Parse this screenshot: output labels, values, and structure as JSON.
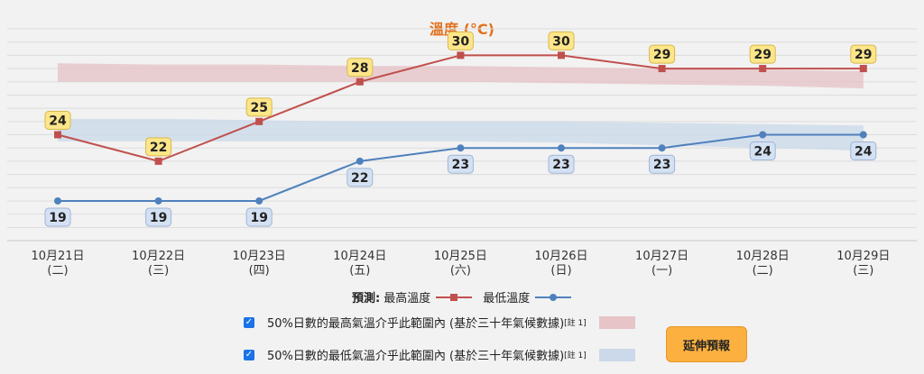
{
  "chart_data": {
    "type": "line",
    "title": "溫度 (°C)",
    "categories": [
      {
        "date": "10月21日",
        "weekday": "(二)"
      },
      {
        "date": "10月22日",
        "weekday": "(三)"
      },
      {
        "date": "10月23日",
        "weekday": "(四)"
      },
      {
        "date": "10月24日",
        "weekday": "(五)"
      },
      {
        "date": "10月25日",
        "weekday": "(六)"
      },
      {
        "date": "10月26日",
        "weekday": "(日)"
      },
      {
        "date": "10月27日",
        "weekday": "(一)"
      },
      {
        "date": "10月28日",
        "weekday": "(二)"
      },
      {
        "date": "10月29日",
        "weekday": "(三)"
      }
    ],
    "series": [
      {
        "name": "最高溫度",
        "values": [
          24,
          22,
          25,
          28,
          30,
          30,
          29,
          29,
          29
        ],
        "color": "#c0504d"
      },
      {
        "name": "最低溫度",
        "values": [
          19,
          19,
          19,
          22,
          23,
          23,
          23,
          24,
          24
        ],
        "color": "#4f81bd"
      }
    ],
    "bands": [
      {
        "name": "50%日數的最高氣溫介乎此範圍內",
        "low": [
          28.0,
          28.0,
          28.0,
          28.0,
          28.0,
          27.9,
          27.8,
          27.7,
          27.5
        ],
        "high": [
          29.4,
          29.3,
          29.3,
          29.2,
          29.2,
          29.1,
          29.0,
          28.9,
          28.8
        ],
        "color": "#e6c4c8"
      },
      {
        "name": "50%日數的最低氣溫介乎此範圍內",
        "low": [
          23.5,
          23.5,
          23.5,
          23.5,
          23.5,
          23.4,
          23.2,
          23.0,
          22.8
        ],
        "high": [
          25.2,
          25.2,
          25.1,
          25.0,
          25.0,
          25.0,
          24.9,
          24.8,
          24.7
        ],
        "color": "#ccd9ea"
      }
    ],
    "ylim": [
      16,
      32
    ],
    "grid": true,
    "legend_position": "bottom"
  },
  "legend": {
    "prefix": "預測:",
    "max_label": "最高溫度",
    "min_label": "最低溫度",
    "band_max_text": "50%日數的最高氣溫介乎此範圍內 (基於三十年氣候數據)",
    "band_min_text": "50%日數的最低氣溫介乎此範圍內 (基於三十年氣候數據)",
    "note": "[註 1]",
    "checkbox_mark": "✓"
  },
  "extend_button": "延伸預報"
}
